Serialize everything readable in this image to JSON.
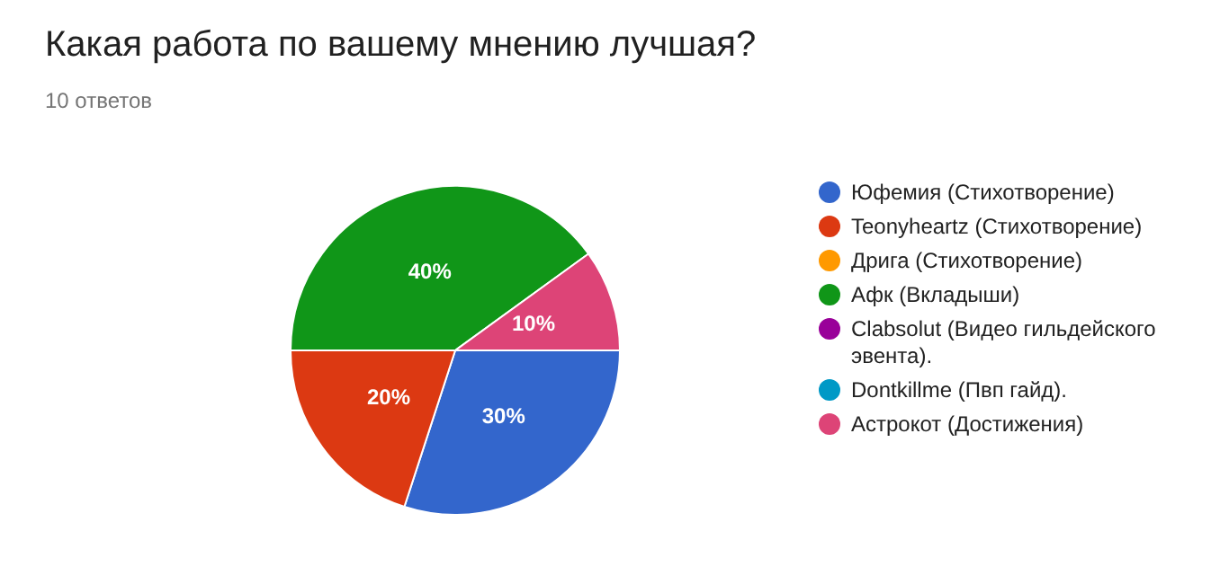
{
  "chart_data": {
    "type": "pie",
    "title": "Какая работа по вашему мнению лучшая?",
    "subtitle": "10 ответов",
    "categories": [
      "Юфемия (Стихотворение)",
      "Teonyheartz (Стихотворение)",
      "Дрига (Стихотворение)",
      "Афк (Вкладыши)",
      "Clabsolut (Видео гильдейского эвента).",
      "Dontkillme (Пвп гайд).",
      "Астрокот (Достижения)"
    ],
    "values": [
      30,
      20,
      0,
      40,
      0,
      0,
      10
    ],
    "value_labels": [
      "30%",
      "20%",
      null,
      "40%",
      null,
      null,
      "10%"
    ],
    "colors": [
      "#3366cc",
      "#dc3912",
      "#ff9900",
      "#109618",
      "#990099",
      "#0099c6",
      "#dd4477"
    ],
    "legend": "right"
  }
}
